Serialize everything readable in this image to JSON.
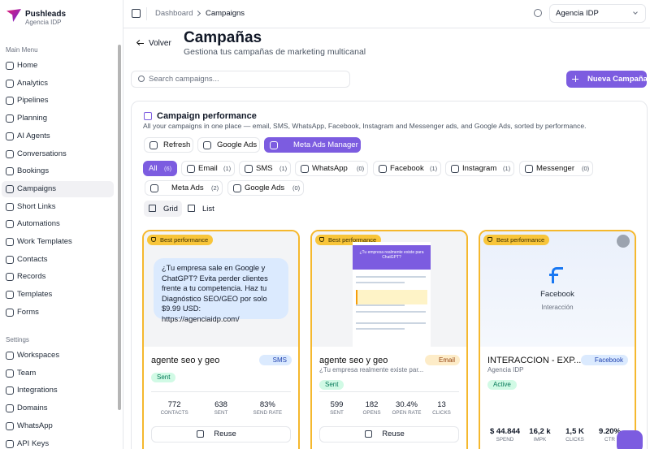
{
  "sidebar": {
    "brand": "Pushleads",
    "workspace": "Agencia IDP",
    "sections": [
      {
        "title": "Main Menu",
        "items": [
          "Home",
          "Analytics",
          "Pipelines",
          "Planning",
          "AI Agents",
          "Conversations",
          "Bookings",
          "Campaigns",
          "Short Links",
          "Automations",
          "Work Templates",
          "Contacts",
          "Records",
          "Templates",
          "Forms"
        ]
      },
      {
        "title": "Settings",
        "items": [
          "Workspaces",
          "Team",
          "Integrations",
          "Domains",
          "WhatsApp",
          "API Keys"
        ]
      }
    ],
    "active_item": "Campaigns"
  },
  "topbar": {
    "breadcrumbs": [
      "Dashboard",
      "Campaigns"
    ],
    "account": "Agencia IDP"
  },
  "header": {
    "back": "Volver",
    "title": "Campañas",
    "subtitle": "Gestiona tus campañas de marketing multicanal",
    "search_placeholder": "Search campaigns...",
    "new_button": "Nueva Campaña"
  },
  "panel": {
    "title": "Campaign performance",
    "subtitle": "All your campaigns in one place — email, SMS, WhatsApp, Facebook, Instagram and Messenger ads, and Google Ads, sorted by performance.",
    "actions": [
      "Refresh",
      "Google Ads",
      "Meta Ads Manager"
    ],
    "filters": [
      {
        "label": "All",
        "count": "(6)"
      },
      {
        "label": "Email",
        "count": "(1)"
      },
      {
        "label": "SMS",
        "count": "(1)"
      },
      {
        "label": "WhatsApp",
        "count": "(0)"
      },
      {
        "label": "Facebook",
        "count": "(1)"
      },
      {
        "label": "Instagram",
        "count": "(1)"
      },
      {
        "label": "Messenger",
        "count": "(0)"
      },
      {
        "label": "Meta Ads",
        "count": "(2)"
      },
      {
        "label": "Google Ads",
        "count": "(0)"
      }
    ],
    "views": [
      "Grid",
      "List"
    ],
    "cards": [
      {
        "badge": "Best performance",
        "preview": {
          "message": "¿Tu empresa sale en Google y ChatGPT? Evita perder clientes frente a tu competencia. Haz tu Diagnóstico SEO/GEO por solo $9.99 USD: https://agenciaidp.com/"
        },
        "name": "agente seo y geo",
        "channel": "SMS",
        "status": "Sent",
        "stats": [
          {
            "value": "772",
            "label": "CONTACTS"
          },
          {
            "value": "638",
            "label": "SENT"
          },
          {
            "value": "83%",
            "label": "SEND RATE"
          }
        ],
        "action": "Reuse"
      },
      {
        "badge": "Best performance",
        "preview": {
          "email_title": "¿Tu empresa realmente existe para ChatGPT?"
        },
        "name": "agente seo y geo",
        "channel": "Email",
        "subtitle": "¿Tu empresa realmente existe par...",
        "status": "Sent",
        "stats": [
          {
            "value": "599",
            "label": "SENT"
          },
          {
            "value": "182",
            "label": "OPENS"
          },
          {
            "value": "30.4%",
            "label": "OPEN RATE"
          },
          {
            "value": "13",
            "label": "CLICKS"
          }
        ],
        "action": "Reuse"
      },
      {
        "badge": "Best performance",
        "preview": {
          "platform": "Facebook",
          "caption": "Interacción"
        },
        "name": "INTERACCION - EXP...",
        "channel": "Facebook",
        "subtitle": "Agencia IDP",
        "status": "Active",
        "stats": [
          {
            "value": "$ 44.844",
            "label": "SPEND"
          },
          {
            "value": "16,2 k",
            "label": "IMPK"
          },
          {
            "value": "1,5 K",
            "label": "CLICKS"
          },
          {
            "value": "9.20%",
            "label": "CTR"
          }
        ]
      }
    ]
  }
}
